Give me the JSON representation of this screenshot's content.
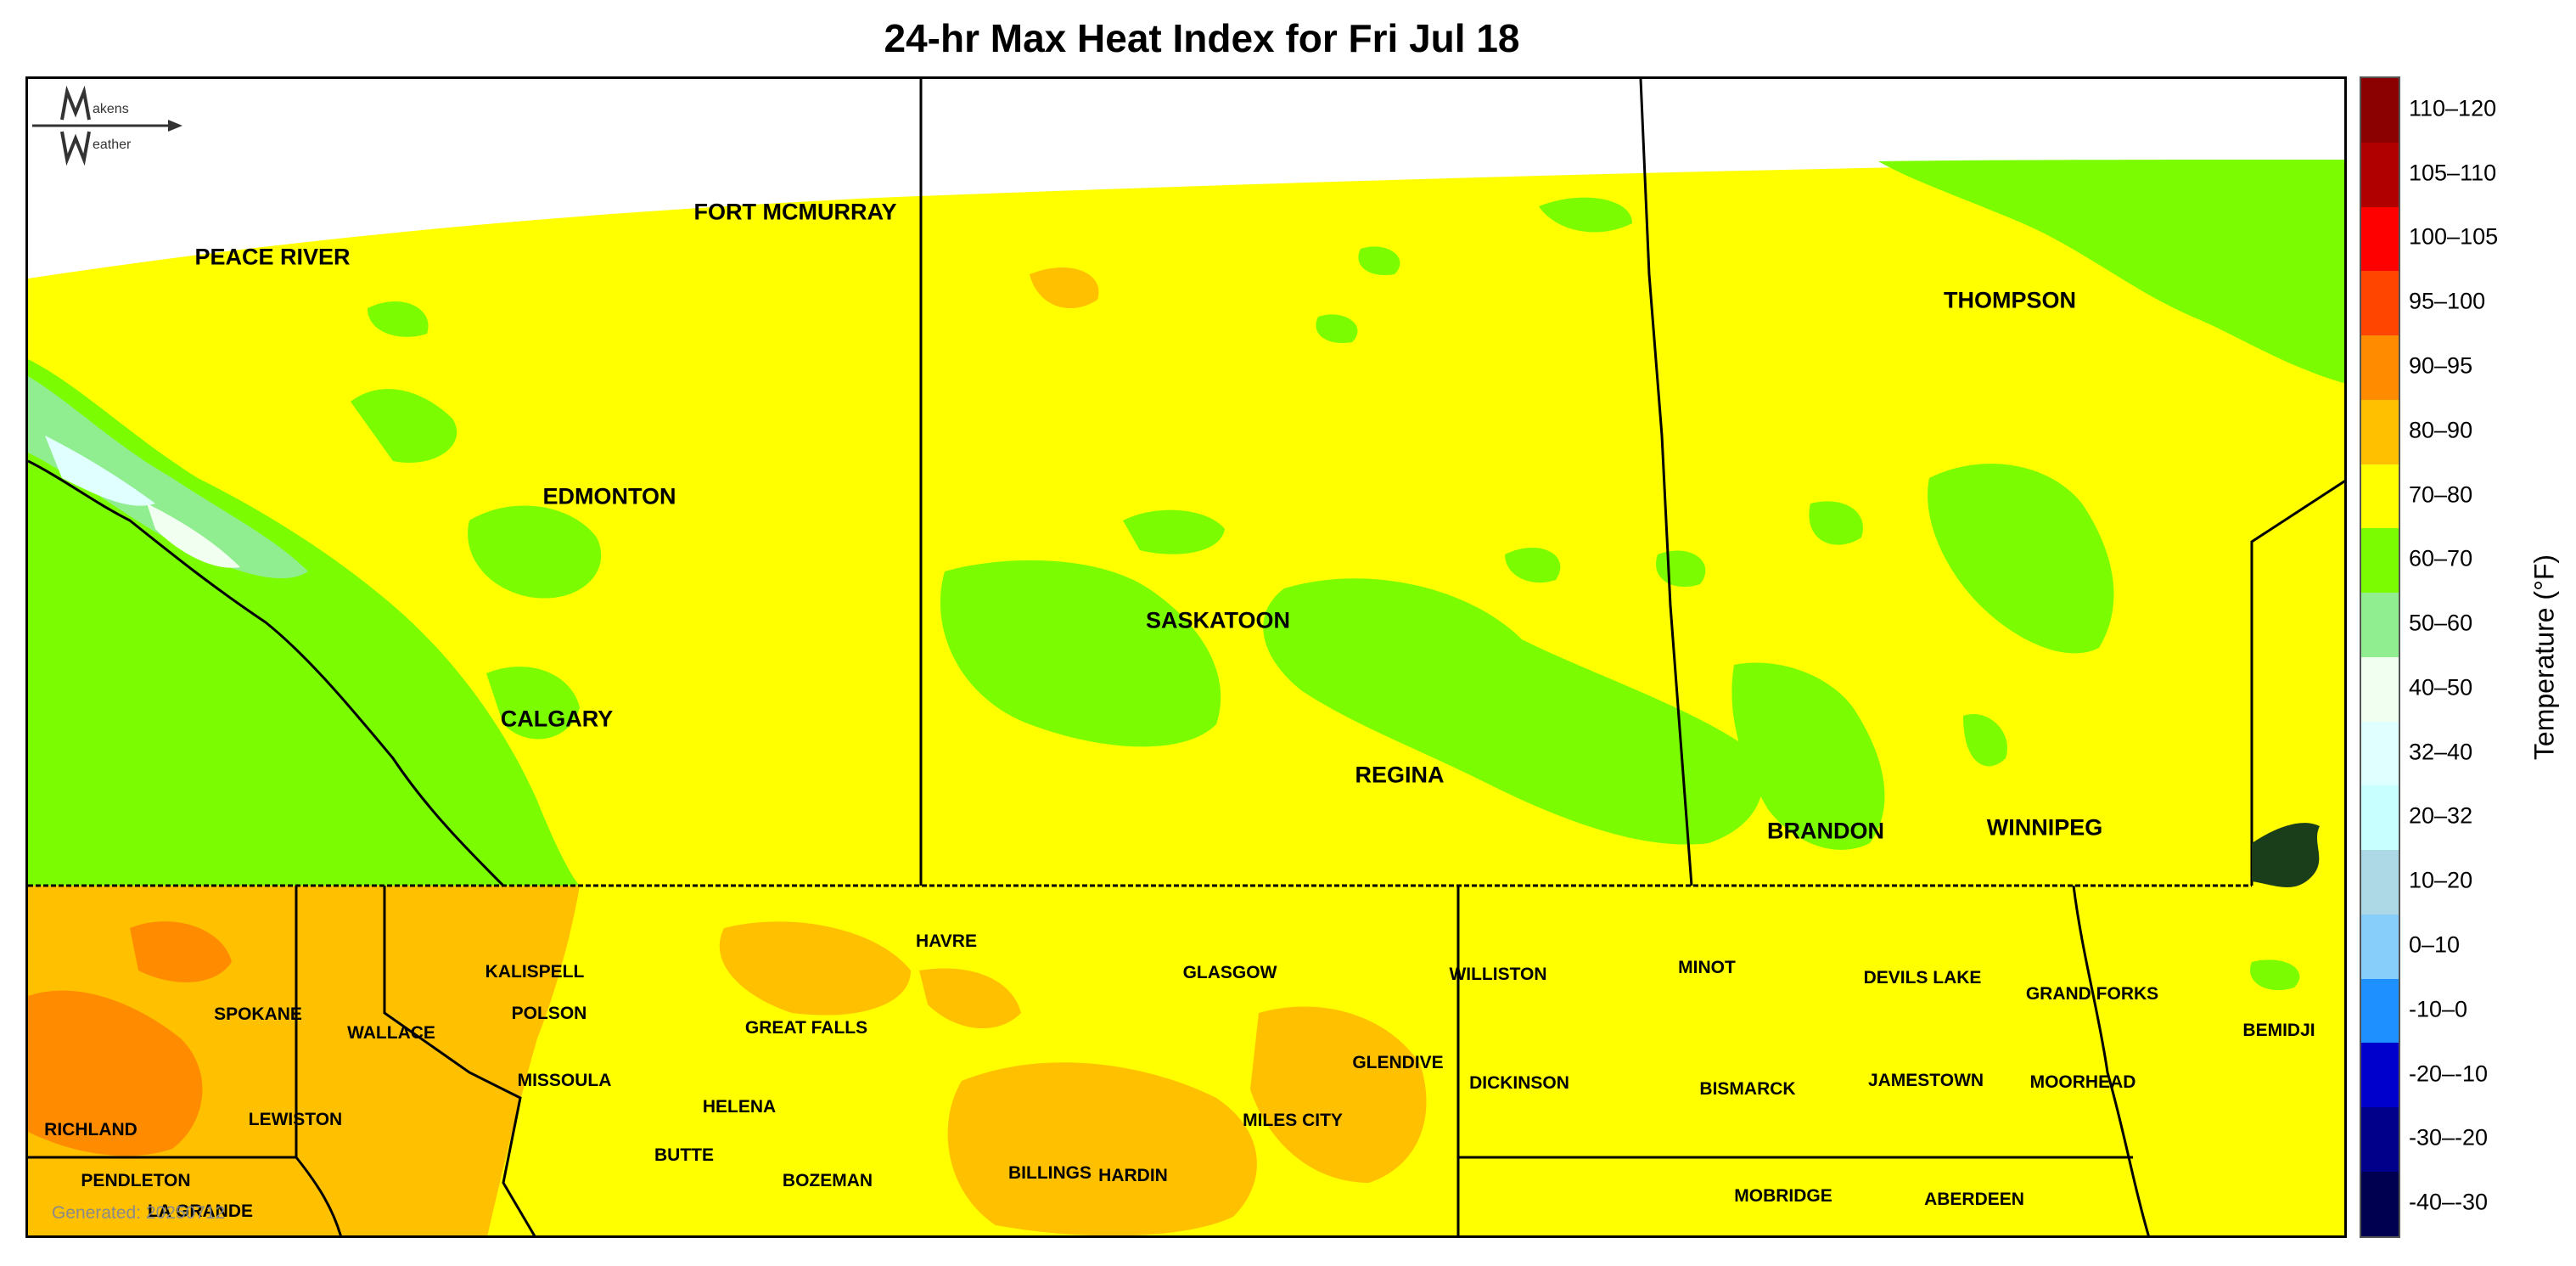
{
  "title": "24-hr Max Heat Index for Fri Jul 18",
  "legend": {
    "title": "Temperature (°F)",
    "bins": [
      {
        "label": "110–120",
        "color": "#8b0000"
      },
      {
        "label": "105–110",
        "color": "#b00000"
      },
      {
        "label": "100–105",
        "color": "#ff0000"
      },
      {
        "label": "95–100",
        "color": "#ff4500"
      },
      {
        "label": "90–95",
        "color": "#ff8c00"
      },
      {
        "label": "80–90",
        "color": "#ffc000"
      },
      {
        "label": "70–80",
        "color": "#ffff00"
      },
      {
        "label": "60–70",
        "color": "#7cfc00"
      },
      {
        "label": "50–60",
        "color": "#90ee90"
      },
      {
        "label": "40–50",
        "color": "#f0fff0"
      },
      {
        "label": "32–40",
        "color": "#e0ffff"
      },
      {
        "label": "20–32",
        "color": "#c8ffff"
      },
      {
        "label": "10–20",
        "color": "#add8e6"
      },
      {
        "label": "0–10",
        "color": "#87cefa"
      },
      {
        "label": "-10–0",
        "color": "#1e90ff"
      },
      {
        "label": "-20–-10",
        "color": "#0000cd"
      },
      {
        "label": "-30–-20",
        "color": "#00008b"
      },
      {
        "label": "-40–-30",
        "color": "#000050"
      }
    ]
  },
  "cities": {
    "peace_river": "PEACE RIVER",
    "fort_mcmurray": "FORT MCMURRAY",
    "thompson": "THOMPSON",
    "edmonton": "EDMONTON",
    "saskatoon": "SASKATOON",
    "calgary": "CALGARY",
    "regina": "REGINA",
    "brandon": "BRANDON",
    "winnipeg": "WINNIPEG",
    "havre": "HAVRE",
    "kalispell": "KALISPELL",
    "glasgow": "GLASGOW",
    "williston": "WILLISTON",
    "minot": "MINOT",
    "devils_lake": "DEVILS LAKE",
    "grand_forks": "GRAND FORKS",
    "spokane": "SPOKANE",
    "polson": "POLSON",
    "wallace": "WALLACE",
    "great_falls": "GREAT FALLS",
    "bemidji": "BEMIDJI",
    "glendive": "GLENDIVE",
    "missoula": "MISSOULA",
    "dickinson": "DICKINSON",
    "bismarck": "BISMARCK",
    "jamestown": "JAMESTOWN",
    "moorhead": "MOORHEAD",
    "helena": "HELENA",
    "richland": "RICHLAND",
    "lewiston": "LEWISTON",
    "miles_city": "MILES CITY",
    "butte": "BUTTE",
    "billings": "BILLINGS",
    "hardin": "HARDIN",
    "bozeman": "BOZEMAN",
    "pendleton": "PENDLETON",
    "mobridge": "MOBRIDGE",
    "aberdeen": "ABERDEEN",
    "la_grande": "LA GRANDE"
  },
  "generated": "Generated: 20250712",
  "logo_text": {
    "top": "akens",
    "bottom": "eather"
  }
}
